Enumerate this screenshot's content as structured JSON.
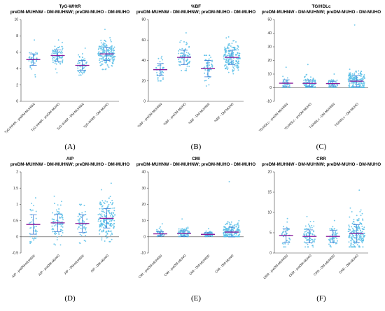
{
  "colors": {
    "dot": "#5bc0e8",
    "mean": "#8a1c9c",
    "sd": "#3f7fd6",
    "axis": "#444444"
  },
  "panel_labels": [
    "(A)",
    "(B)",
    "(C)",
    "(D)",
    "(E)",
    "(F)"
  ],
  "chart_data": [
    {
      "type": "scatter",
      "title": "TyG-WHtR",
      "subtitle": "preDM-MUHNW - DM-MUHNW; preDM-MUHO - DM-MUHO",
      "ylim": [
        0,
        10
      ],
      "yticks": [
        0,
        2,
        4,
        6,
        8,
        10
      ],
      "categories": [
        "TyG-WHtR - preDM-MUHNW",
        "TyG-WHtR - preDM-MUHO",
        "TyG-WHtR - DM-MUHNW",
        "TyG-WHtR - DM-MUHO"
      ],
      "groups": [
        {
          "n": 40,
          "mean": 5.1,
          "sd": 0.7,
          "min": 3.0,
          "max": 7.5
        },
        {
          "n": 80,
          "mean": 5.6,
          "sd": 0.7,
          "min": 3.5,
          "max": 7.5
        },
        {
          "n": 55,
          "mean": 4.4,
          "sd": 0.6,
          "min": 3.2,
          "max": 6.5
        },
        {
          "n": 190,
          "mean": 5.8,
          "sd": 0.8,
          "min": 3.9,
          "max": 8.8
        }
      ]
    },
    {
      "type": "scatter",
      "title": "%BF",
      "subtitle": "preDM-MUHNW - DM-MUHNW; preDM-MUHO - DM-MUHO",
      "ylim": [
        0,
        80
      ],
      "yticks": [
        0,
        20,
        40,
        60,
        80
      ],
      "categories": [
        "%BF - preDM-MUHNW",
        "%BF - preDM-MUHO",
        "%BF - DM-MUHNW",
        "%BF - DM-MUHO"
      ],
      "groups": [
        {
          "n": 40,
          "mean": 31,
          "sd": 6,
          "min": 20,
          "max": 44
        },
        {
          "n": 80,
          "mean": 43,
          "sd": 7,
          "min": 30,
          "max": 67
        },
        {
          "n": 55,
          "mean": 32,
          "sd": 8,
          "min": 15,
          "max": 45
        },
        {
          "n": 190,
          "mean": 43,
          "sd": 7,
          "min": 27,
          "max": 63
        }
      ]
    },
    {
      "type": "scatter",
      "title": "TG/HDLc",
      "subtitle": "preDM-MUHNW - DM-MUHNW; preDM-MUHO - DM-MUHO",
      "ylim": [
        -10,
        50
      ],
      "yticks": [
        -10,
        0,
        10,
        20,
        30,
        40,
        50
      ],
      "categories": [
        "TG/HDLc - preDM-MUHNW",
        "TG/HDLc - preDM-MUHO",
        "TG/HDLc - DM-MUHNW",
        "TG/HDLc - DM-MUHO"
      ],
      "groups": [
        {
          "n": 40,
          "mean": 3.3,
          "sd": 2.5,
          "min": 0.3,
          "max": 15
        },
        {
          "n": 80,
          "mean": 3.2,
          "sd": 2.2,
          "min": 0.3,
          "max": 17
        },
        {
          "n": 55,
          "mean": 3.0,
          "sd": 1.8,
          "min": 0.3,
          "max": 10
        },
        {
          "n": 190,
          "mean": 4.8,
          "sd": 4.0,
          "min": 0.3,
          "max": 46
        }
      ]
    },
    {
      "type": "scatter",
      "title": "AIP",
      "subtitle": "preDM-MUHNW - DM-MUHNW; preDM-MUHO - DM-MUHO",
      "ylim": [
        -0.5,
        2.0
      ],
      "yticks": [
        -0.5,
        0.0,
        0.5,
        1.0,
        1.5,
        2.0
      ],
      "categories": [
        "AIP - preDM-MUHNW",
        "AIP - preDM-MUHO",
        "AIP - DM-MUHNW",
        "AIP - DM-MUHO"
      ],
      "groups": [
        {
          "n": 40,
          "mean": 0.38,
          "sd": 0.3,
          "min": -0.2,
          "max": 1.2
        },
        {
          "n": 80,
          "mean": 0.43,
          "sd": 0.27,
          "min": -0.25,
          "max": 1.25
        },
        {
          "n": 55,
          "mean": 0.41,
          "sd": 0.27,
          "min": -0.2,
          "max": 1.0
        },
        {
          "n": 190,
          "mean": 0.57,
          "sd": 0.3,
          "min": -0.15,
          "max": 1.65
        }
      ]
    },
    {
      "type": "scatter",
      "title": "CMI",
      "subtitle": "preDM-MUHNW - DM-MUHNW; preDM-MUHO - DM-MUHO",
      "ylim": [
        -10,
        40
      ],
      "yticks": [
        -10,
        0,
        10,
        20,
        30,
        40
      ],
      "categories": [
        "CMI - preDM-MUHNW",
        "CMI - preDM-MUHO",
        "CMI - DM-MUHNW",
        "CMI - DM-MUHO"
      ],
      "groups": [
        {
          "n": 40,
          "mean": 1.8,
          "sd": 1.4,
          "min": 0.2,
          "max": 8
        },
        {
          "n": 80,
          "mean": 2.0,
          "sd": 1.8,
          "min": 0.2,
          "max": 11
        },
        {
          "n": 55,
          "mean": 1.5,
          "sd": 1.1,
          "min": 0.2,
          "max": 5
        },
        {
          "n": 190,
          "mean": 2.9,
          "sd": 3.0,
          "min": 0.2,
          "max": 34
        }
      ]
    },
    {
      "type": "scatter",
      "title": "CRR",
      "subtitle": "preDM-MUHNW - DM-MUHNW; preDM-MUHO - DM-MUHO",
      "ylim": [
        0,
        20
      ],
      "yticks": [
        0,
        5,
        10,
        15,
        20
      ],
      "categories": [
        "CRR - preDM-MUHNW",
        "CRR - preDM-MUHO",
        "CRR - DM-MUHNW",
        "CRR - DM-MUHO"
      ],
      "groups": [
        {
          "n": 40,
          "mean": 4.3,
          "sd": 1.7,
          "min": 1.5,
          "max": 8.5
        },
        {
          "n": 80,
          "mean": 4.1,
          "sd": 1.6,
          "min": 1.5,
          "max": 9.0
        },
        {
          "n": 55,
          "mean": 4.1,
          "sd": 1.5,
          "min": 1.5,
          "max": 8.0
        },
        {
          "n": 190,
          "mean": 4.8,
          "sd": 2.2,
          "min": 1.5,
          "max": 15.5
        }
      ]
    }
  ]
}
